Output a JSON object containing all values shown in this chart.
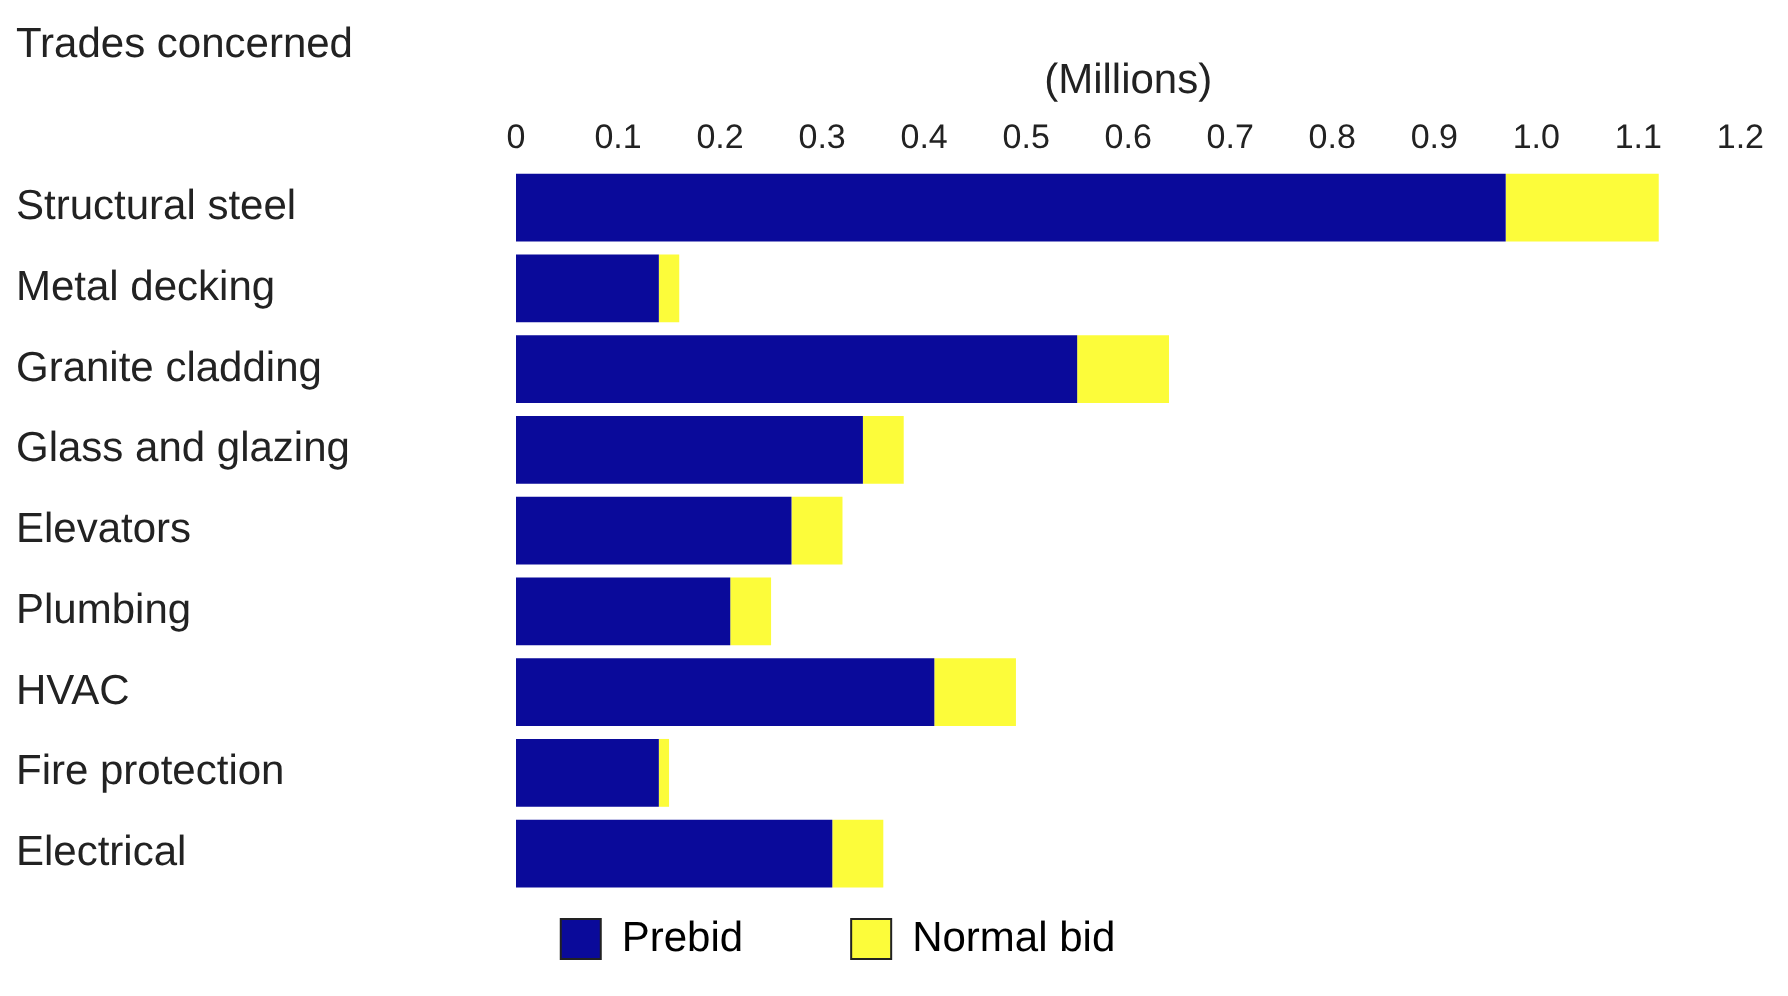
{
  "chart_data": {
    "type": "bar",
    "orientation": "horizontal",
    "stacked": true,
    "xlabel": "(Millions)",
    "ylabel": "Trades concerned",
    "categories": [
      "Structural steel",
      "Metal decking",
      "Granite cladding",
      "Glass and glazing",
      "Elevators",
      "Plumbing",
      "HVAC",
      "Fire protection",
      "Electrical"
    ],
    "series": [
      {
        "name": "Prebid",
        "color": "#0a0a9a",
        "values": [
          0.97,
          0.14,
          0.55,
          0.34,
          0.27,
          0.21,
          0.41,
          0.14,
          0.31
        ]
      },
      {
        "name": "Normal bid",
        "color": "#fcfc3a",
        "values": [
          0.15,
          0.02,
          0.09,
          0.04,
          0.05,
          0.04,
          0.08,
          0.01,
          0.05
        ]
      }
    ],
    "xlim": [
      0,
      1.2
    ],
    "xticks": [
      0,
      0.1,
      0.2,
      0.3,
      0.4,
      0.5,
      0.6,
      0.7,
      0.8,
      0.9,
      {
        "value": 1.0,
        "label": "1.0"
      },
      1.1,
      1.2
    ],
    "grid": false,
    "legend": "bottom"
  }
}
